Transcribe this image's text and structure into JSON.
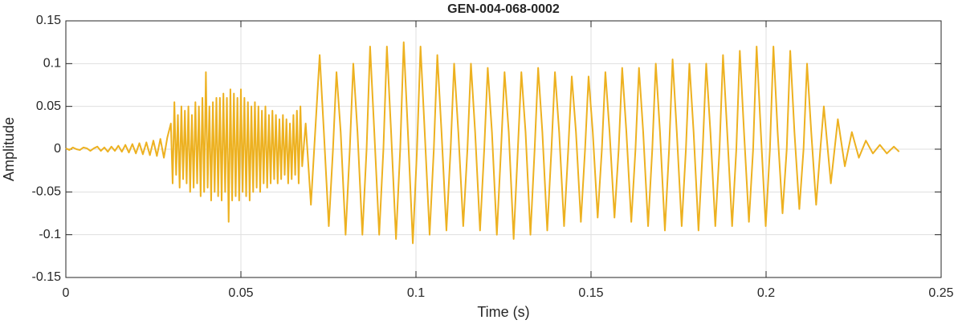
{
  "chart_data": {
    "type": "line",
    "title": "GEN-004-068-0002",
    "x_label": "Time (s)",
    "y_label": "Amplitude",
    "xlim": [
      0,
      0.25
    ],
    "ylim": [
      -0.15,
      0.15
    ],
    "xticks": [
      0,
      0.05,
      0.1,
      0.15,
      0.2,
      0.25
    ],
    "yticks": [
      -0.15,
      -0.1,
      -0.05,
      0,
      0.05,
      0.1,
      0.15
    ],
    "grid": true,
    "x": [
      0,
      0.001,
      0.002,
      0.003,
      0.004,
      0.005,
      0.006,
      0.007,
      0.008,
      0.009,
      0.01,
      0.011,
      0.012,
      0.013,
      0.014,
      0.015,
      0.016,
      0.017,
      0.018,
      0.019,
      0.02,
      0.021,
      0.022,
      0.023,
      0.024,
      0.025,
      0.026,
      0.027,
      0.028,
      0.029,
      0.03,
      0.0305,
      0.031,
      0.0315,
      0.032,
      0.0325,
      0.033,
      0.0335,
      0.034,
      0.0345,
      0.035,
      0.0355,
      0.036,
      0.0365,
      0.037,
      0.0375,
      0.038,
      0.0385,
      0.039,
      0.0395,
      0.04,
      0.0405,
      0.041,
      0.0415,
      0.042,
      0.0425,
      0.043,
      0.0435,
      0.044,
      0.0445,
      0.045,
      0.0455,
      0.046,
      0.0465,
      0.047,
      0.0475,
      0.048,
      0.0485,
      0.049,
      0.0495,
      0.05,
      0.0505,
      0.051,
      0.0515,
      0.052,
      0.0525,
      0.053,
      0.0535,
      0.054,
      0.0545,
      0.055,
      0.0555,
      0.056,
      0.0565,
      0.057,
      0.0575,
      0.058,
      0.0585,
      0.059,
      0.0595,
      0.06,
      0.0605,
      0.061,
      0.0615,
      0.062,
      0.0625,
      0.063,
      0.0635,
      0.064,
      0.0645,
      0.065,
      0.0655,
      0.066,
      0.0665,
      0.067,
      0.0675,
      0.0685,
      0.07,
      0.0725,
      0.0737,
      0.0751,
      0.0763,
      0.0773,
      0.0785,
      0.0799,
      0.0811,
      0.0821,
      0.0833,
      0.0847,
      0.0859,
      0.0869,
      0.0881,
      0.0895,
      0.0907,
      0.0917,
      0.0929,
      0.0943,
      0.0955,
      0.0965,
      0.0977,
      0.0991,
      0.1003,
      0.1013,
      0.1025,
      0.1039,
      0.1051,
      0.1061,
      0.1073,
      0.1087,
      0.1099,
      0.1109,
      0.1121,
      0.1135,
      0.1147,
      0.1157,
      0.1169,
      0.1183,
      0.1195,
      0.1205,
      0.1217,
      0.1231,
      0.1243,
      0.1253,
      0.1265,
      0.1279,
      0.1291,
      0.1301,
      0.1313,
      0.1327,
      0.1339,
      0.1349,
      0.1361,
      0.1375,
      0.1387,
      0.1397,
      0.1409,
      0.1423,
      0.1435,
      0.1445,
      0.1457,
      0.1471,
      0.1483,
      0.1493,
      0.1505,
      0.1519,
      0.1531,
      0.1541,
      0.1553,
      0.1567,
      0.1579,
      0.1589,
      0.1601,
      0.1615,
      0.1627,
      0.1637,
      0.1649,
      0.1663,
      0.1675,
      0.1685,
      0.1697,
      0.1711,
      0.1723,
      0.1733,
      0.1745,
      0.1759,
      0.1771,
      0.1781,
      0.1793,
      0.1807,
      0.1819,
      0.1829,
      0.1841,
      0.1855,
      0.1867,
      0.1877,
      0.1889,
      0.1903,
      0.1915,
      0.1925,
      0.1937,
      0.1951,
      0.1963,
      0.1973,
      0.1985,
      0.1999,
      0.2011,
      0.2021,
      0.2033,
      0.2047,
      0.2059,
      0.2069,
      0.2081,
      0.2095,
      0.2107,
      0.2117,
      0.2129,
      0.2143,
      0.2155,
      0.2165,
      0.2185,
      0.2205,
      0.2225,
      0.2245,
      0.2265,
      0.2285,
      0.2305,
      0.2325,
      0.2345,
      0.2365,
      0.238
    ],
    "series": [
      {
        "color": "#EDB120",
        "values": [
          0.001,
          -0.001,
          0.002,
          0,
          -0.001,
          0.002,
          0.001,
          -0.002,
          0.001,
          0.003,
          -0.002,
          0.002,
          -0.003,
          0.003,
          -0.002,
          0.004,
          -0.003,
          0.005,
          -0.004,
          0.006,
          -0.005,
          0.007,
          -0.006,
          0.008,
          -0.007,
          0.01,
          -0.008,
          0.012,
          -0.01,
          0.014,
          0.03,
          -0.04,
          0.055,
          -0.03,
          0.04,
          -0.045,
          0.05,
          -0.035,
          0.045,
          -0.04,
          0.05,
          -0.05,
          0.04,
          -0.045,
          0.055,
          -0.04,
          0.05,
          -0.055,
          0.06,
          -0.05,
          0.09,
          -0.045,
          0.05,
          -0.06,
          0.055,
          -0.05,
          0.06,
          -0.055,
          0.06,
          -0.06,
          0.065,
          -0.05,
          0.06,
          -0.085,
          0.07,
          -0.06,
          0.065,
          -0.055,
          0.06,
          -0.06,
          0.07,
          -0.05,
          0.06,
          -0.055,
          0.055,
          -0.06,
          0.05,
          -0.05,
          0.055,
          -0.045,
          0.05,
          -0.05,
          0.045,
          -0.04,
          0.05,
          -0.045,
          0.04,
          -0.04,
          0.045,
          -0.035,
          0.04,
          -0.04,
          0.035,
          -0.035,
          0.04,
          -0.03,
          0.035,
          -0.04,
          0.03,
          -0.035,
          0.04,
          -0.03,
          0.045,
          -0.04,
          0.05,
          -0.02,
          0.03,
          -0.065,
          0.11,
          0.02,
          -0.09,
          0,
          0.09,
          0.02,
          -0.1,
          0,
          0.1,
          0.02,
          -0.1,
          0,
          0.12,
          0.02,
          -0.1,
          0,
          0.12,
          0.02,
          -0.105,
          0,
          0.125,
          0.02,
          -0.11,
          0,
          0.12,
          0.02,
          -0.1,
          0,
          0.11,
          0.02,
          -0.095,
          0,
          0.1,
          0.02,
          -0.09,
          0,
          0.1,
          0.02,
          -0.095,
          0,
          0.095,
          0.02,
          -0.1,
          0,
          0.09,
          0.02,
          -0.105,
          0,
          0.09,
          0.02,
          -0.1,
          0,
          0.095,
          0.02,
          -0.095,
          0,
          0.09,
          0.02,
          -0.09,
          0,
          0.085,
          0.02,
          -0.085,
          0,
          0.085,
          0.02,
          -0.08,
          0,
          0.09,
          0.02,
          -0.08,
          0,
          0.095,
          0.02,
          -0.085,
          0,
          0.095,
          0.02,
          -0.09,
          0,
          0.1,
          0.02,
          -0.095,
          0,
          0.105,
          0.02,
          -0.09,
          0,
          0.1,
          0.02,
          -0.095,
          0,
          0.1,
          0.02,
          -0.09,
          0,
          0.11,
          0.02,
          -0.09,
          0,
          0.115,
          0.02,
          -0.085,
          0,
          0.12,
          0.02,
          -0.09,
          0,
          0.12,
          0.02,
          -0.075,
          0,
          0.115,
          0.02,
          -0.07,
          0,
          0.1,
          0.02,
          -0.065,
          0,
          0.05,
          -0.04,
          0.035,
          -0.02,
          0.02,
          -0.01,
          0.01,
          -0.005,
          0.005,
          -0.005,
          0.003,
          -0.003
        ]
      }
    ]
  }
}
